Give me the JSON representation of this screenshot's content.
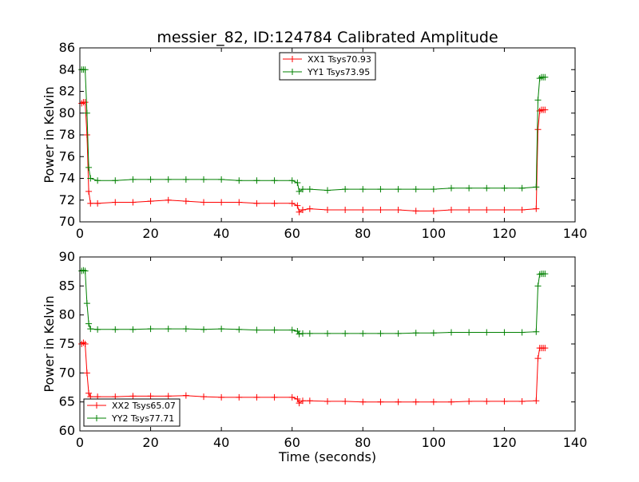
{
  "chart_data": [
    {
      "type": "line",
      "title": "messier_82, ID:124784 Calibrated Amplitude",
      "xlabel": "",
      "ylabel": "Power in Kelvin",
      "xlim": [
        0,
        140
      ],
      "ylim": [
        70,
        86
      ],
      "xticks": [
        0,
        20,
        40,
        60,
        80,
        100,
        120,
        140
      ],
      "yticks": [
        70,
        72,
        74,
        76,
        78,
        80,
        82,
        84,
        86
      ],
      "grid": false,
      "legend": "top-center",
      "series": [
        {
          "name": "XX1 Tsys70.93",
          "color": "#ff0000",
          "x": [
            0.5,
            1,
            1.5,
            2,
            2.5,
            3,
            5,
            10,
            15,
            20,
            25,
            30,
            35,
            40,
            45,
            50,
            55,
            60,
            61.5,
            62,
            63,
            65,
            70,
            75,
            80,
            85,
            90,
            95,
            100,
            105,
            110,
            115,
            120,
            125,
            129,
            129.5,
            130,
            130.5,
            131,
            131.5
          ],
          "y": [
            80.9,
            81.0,
            81.0,
            78.0,
            72.8,
            71.7,
            71.7,
            71.8,
            71.8,
            71.9,
            72.0,
            71.9,
            71.8,
            71.8,
            71.8,
            71.7,
            71.7,
            71.7,
            71.5,
            70.9,
            71.1,
            71.2,
            71.1,
            71.1,
            71.1,
            71.1,
            71.1,
            71.0,
            71.0,
            71.1,
            71.1,
            71.1,
            71.1,
            71.1,
            71.2,
            78.5,
            80.2,
            80.3,
            80.3,
            80.3
          ]
        },
        {
          "name": "YY1 Tsys73.95",
          "color": "#008000",
          "x": [
            0.5,
            1,
            1.5,
            2,
            2.5,
            3,
            5,
            10,
            15,
            20,
            25,
            30,
            35,
            40,
            45,
            50,
            55,
            60,
            61.5,
            62,
            63,
            65,
            70,
            75,
            80,
            85,
            90,
            95,
            100,
            105,
            110,
            115,
            120,
            125,
            129,
            129.5,
            130,
            130.5,
            131,
            131.5
          ],
          "y": [
            84.0,
            84.0,
            84.0,
            80.0,
            75.0,
            74.0,
            73.8,
            73.8,
            73.9,
            73.9,
            73.9,
            73.9,
            73.9,
            73.9,
            73.8,
            73.8,
            73.8,
            73.8,
            73.6,
            72.8,
            73.0,
            73.0,
            72.9,
            73.0,
            73.0,
            73.0,
            73.0,
            73.0,
            73.0,
            73.1,
            73.1,
            73.1,
            73.1,
            73.1,
            73.2,
            81.2,
            83.2,
            83.3,
            83.3,
            83.3
          ]
        }
      ]
    },
    {
      "type": "line",
      "title": "",
      "xlabel": "Time (seconds)",
      "ylabel": "Power in Kelvin",
      "xlim": [
        0,
        140
      ],
      "ylim": [
        60,
        90
      ],
      "xticks": [
        0,
        20,
        40,
        60,
        80,
        100,
        120,
        140
      ],
      "yticks": [
        60,
        65,
        70,
        75,
        80,
        85,
        90
      ],
      "grid": false,
      "legend": "bottom-left",
      "series": [
        {
          "name": "XX2 Tsys65.07",
          "color": "#ff0000",
          "x": [
            0.5,
            1,
            1.5,
            2,
            2.5,
            3,
            5,
            10,
            15,
            20,
            25,
            30,
            35,
            40,
            45,
            50,
            55,
            60,
            61.5,
            62,
            63,
            65,
            70,
            75,
            80,
            85,
            90,
            95,
            100,
            105,
            110,
            115,
            120,
            125,
            129,
            129.5,
            130,
            130.5,
            131,
            131.5
          ],
          "y": [
            75.0,
            75.2,
            75.0,
            70.0,
            66.5,
            65.9,
            65.9,
            65.9,
            66.0,
            66.0,
            66.0,
            66.1,
            65.9,
            65.8,
            65.8,
            65.8,
            65.8,
            65.8,
            65.5,
            64.8,
            65.2,
            65.2,
            65.1,
            65.1,
            65.0,
            65.0,
            65.0,
            65.0,
            65.0,
            65.0,
            65.1,
            65.1,
            65.1,
            65.1,
            65.2,
            72.5,
            74.3,
            74.3,
            74.3,
            74.3
          ]
        },
        {
          "name": "YY2 Tsys77.71",
          "color": "#008000",
          "x": [
            0.5,
            1,
            1.5,
            2,
            2.5,
            3,
            5,
            10,
            15,
            20,
            25,
            30,
            35,
            40,
            45,
            50,
            55,
            60,
            61.5,
            62,
            63,
            65,
            70,
            75,
            80,
            85,
            90,
            95,
            100,
            105,
            110,
            115,
            120,
            125,
            129,
            129.5,
            130,
            130.5,
            131,
            131.5
          ],
          "y": [
            87.6,
            87.7,
            87.6,
            82.0,
            78.5,
            77.6,
            77.5,
            77.5,
            77.5,
            77.6,
            77.6,
            77.6,
            77.5,
            77.6,
            77.5,
            77.4,
            77.4,
            77.4,
            77.2,
            76.7,
            76.8,
            76.8,
            76.8,
            76.8,
            76.8,
            76.8,
            76.8,
            76.9,
            76.9,
            77.0,
            77.0,
            77.0,
            77.0,
            77.0,
            77.1,
            85.0,
            87.0,
            87.1,
            87.1,
            87.1
          ]
        }
      ]
    }
  ]
}
